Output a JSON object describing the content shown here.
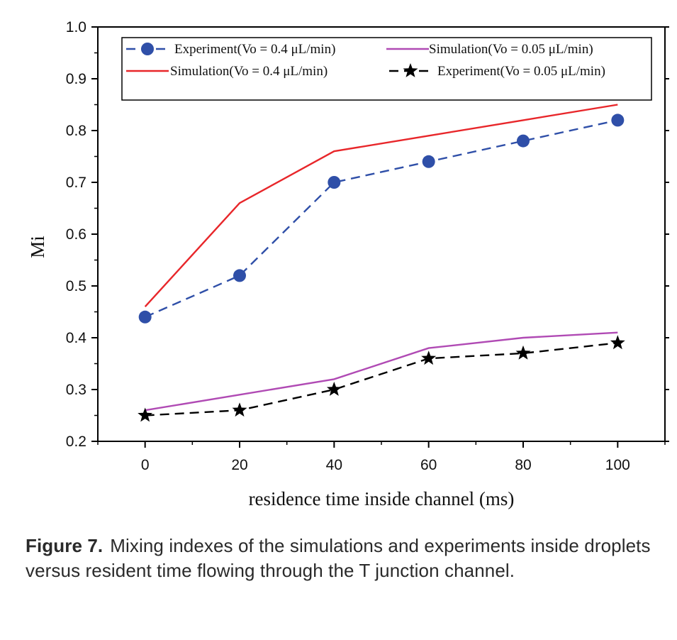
{
  "chart_data": {
    "type": "line",
    "xlabel": "residence time inside channel (ms)",
    "ylabel": "Mi",
    "xlim": [
      -10,
      110
    ],
    "ylim": [
      0.2,
      1.0
    ],
    "x_ticks": [
      0,
      20,
      40,
      60,
      80,
      100
    ],
    "x_tick_labels": [
      "0",
      "20",
      "40",
      "60",
      "80",
      "100"
    ],
    "y_ticks": [
      0.2,
      0.3,
      0.4,
      0.5,
      0.6,
      0.7,
      0.8,
      0.9,
      1.0
    ],
    "y_tick_labels": [
      "0.2",
      "0.3",
      "0.4",
      "0.5",
      "0.6",
      "0.7",
      "0.8",
      "0.9",
      "1.0"
    ],
    "grid": false,
    "legend_position": "top",
    "series": [
      {
        "name": "Experiment(Vo = 0.4 μL/min)",
        "x": [
          0,
          20,
          40,
          60,
          80,
          100
        ],
        "values": [
          0.44,
          0.52,
          0.7,
          0.74,
          0.78,
          0.82
        ],
        "color": "#2f4fa8",
        "line_style": "dashed",
        "marker": "circle"
      },
      {
        "name": "Simulation(Vo = 0.4 μL/min)",
        "x": [
          0,
          20,
          40,
          60,
          80,
          100
        ],
        "values": [
          0.46,
          0.66,
          0.76,
          0.79,
          0.82,
          0.85
        ],
        "color": "#e8262a",
        "line_style": "solid",
        "marker": "none"
      },
      {
        "name": "Simulation(Vo = 0.05 μL/min)",
        "x": [
          0,
          20,
          40,
          60,
          80,
          100
        ],
        "values": [
          0.26,
          0.29,
          0.32,
          0.38,
          0.4,
          0.41
        ],
        "color": "#b04ab4",
        "line_style": "solid",
        "marker": "none"
      },
      {
        "name": "Experiment(Vo = 0.05 μL/min)",
        "x": [
          0,
          20,
          40,
          60,
          80,
          100
        ],
        "values": [
          0.25,
          0.26,
          0.3,
          0.36,
          0.37,
          0.39
        ],
        "color": "#000000",
        "line_style": "dashed",
        "marker": "star"
      }
    ]
  },
  "caption": {
    "label": "Figure 7.",
    "text": "Mixing indexes of the simulations and experiments inside droplets versus resident time flowing through the T junction channel."
  }
}
